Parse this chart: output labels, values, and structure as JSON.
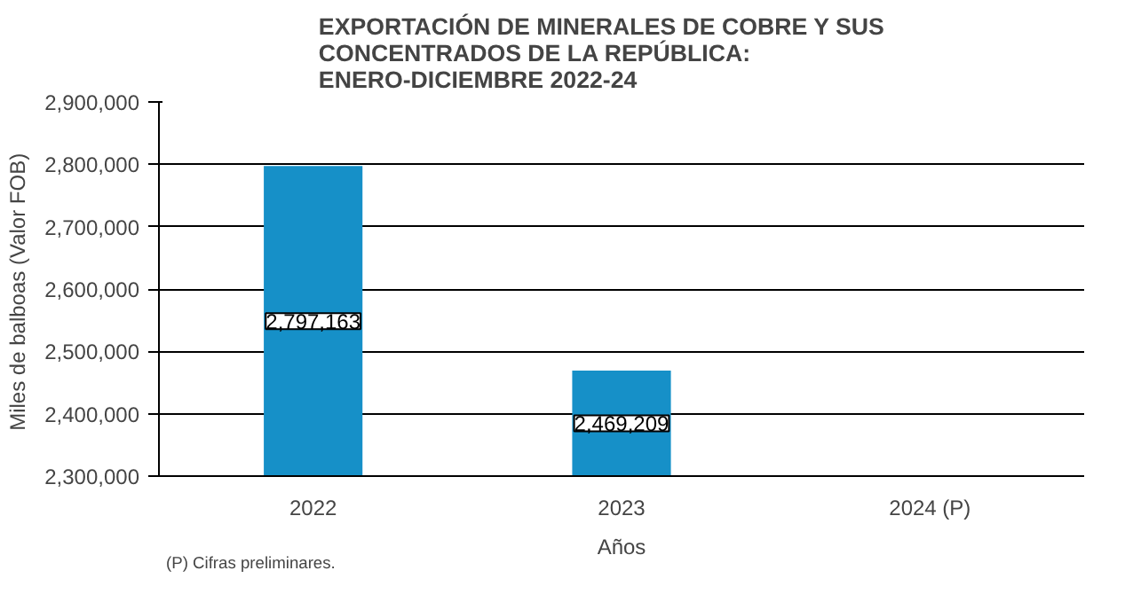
{
  "chart_data": {
    "type": "bar",
    "title": "EXPORTACIÓN  DE  MINERALES  DE  COBRE  Y  SUS\nCONCENTRADOS  DE  LA  REPÚBLICA:\nENERO-DICIEMBRE  2022-24",
    "xlabel": "Años",
    "ylabel": "Miles de balboas  (Valor FOB)",
    "categories": [
      "2022",
      "2023",
      "2024 (P)"
    ],
    "values": [
      2797163,
      2469209,
      null
    ],
    "color": "#1690c8",
    "ylim": [
      2300000,
      2900000
    ],
    "yticks": [
      {
        "value": 2300000,
        "label": "2,300,000"
      },
      {
        "value": 2400000,
        "label": "2,400,000"
      },
      {
        "value": 2500000,
        "label": "2,500,000"
      },
      {
        "value": 2600000,
        "label": "2,600,000"
      },
      {
        "value": 2700000,
        "label": "2,700,000"
      },
      {
        "value": 2800000,
        "label": "2,800,000"
      },
      {
        "value": 2900000,
        "label": "2,900,000"
      }
    ],
    "grid": "y",
    "value_labels": [
      "2,797,163",
      "2,469,209",
      null
    ],
    "annotations": [
      "(P) Cifras preliminares."
    ]
  }
}
